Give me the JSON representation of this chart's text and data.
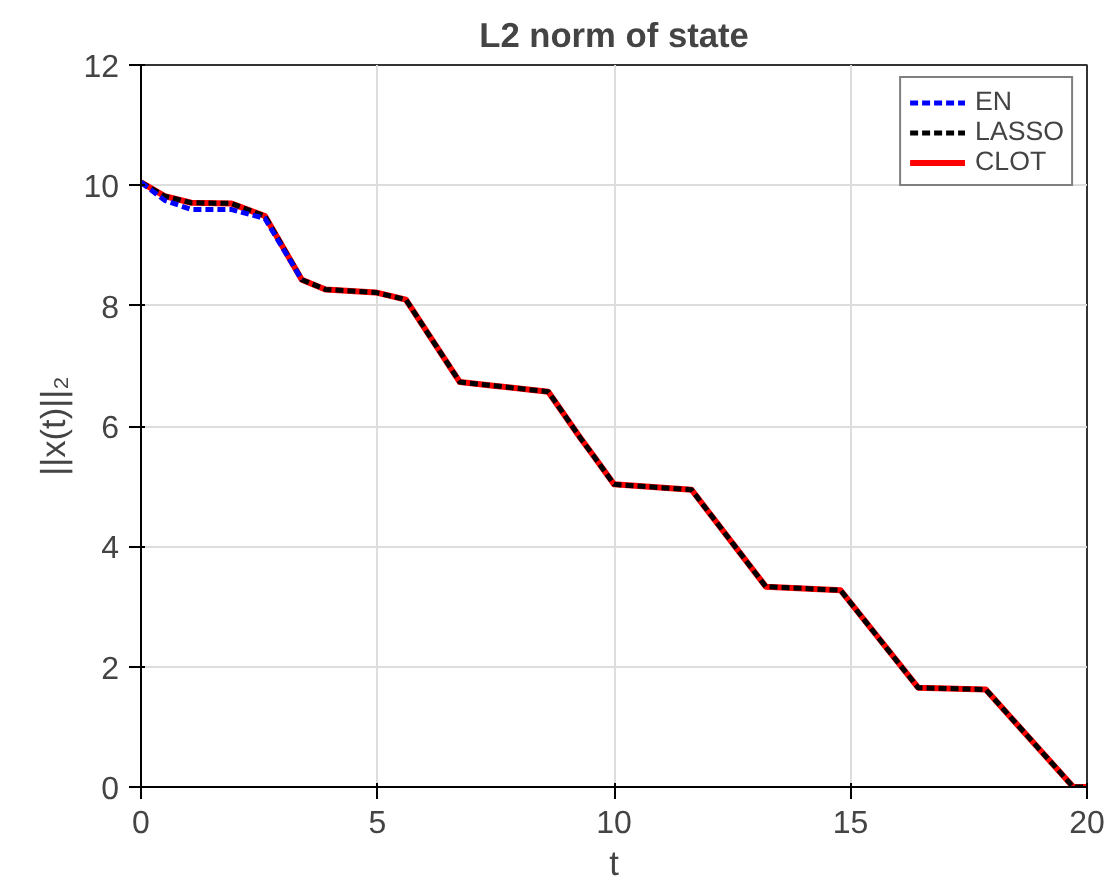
{
  "chart_data": {
    "type": "line",
    "title": "L2 norm of state",
    "xlabel": "t",
    "ylabel": "||x(t)||₂",
    "xlim": [
      0,
      20
    ],
    "ylim": [
      0,
      12
    ],
    "xticks": [
      0,
      5,
      10,
      15,
      20
    ],
    "yticks": [
      0,
      2,
      4,
      6,
      8,
      10,
      12
    ],
    "grid": true,
    "legend": "top right",
    "marker": "none",
    "series": [
      {
        "name": "EN",
        "color": "#0000ff",
        "line_style": "dashed",
        "x": [
          0,
          0.5,
          1.06,
          1.9,
          2.62,
          3.4
        ],
        "values": [
          10.05,
          9.75,
          9.6,
          9.6,
          9.45,
          8.43
        ]
      },
      {
        "name": "LASSO",
        "color": "#000000",
        "line_style": "dashed",
        "x": [
          0,
          0.5,
          1.06,
          1.9,
          2.62,
          3.4,
          3.9,
          4.96,
          5.6,
          6.74,
          7.45,
          8.61,
          9.29,
          9.57,
          10,
          11.64,
          13.21,
          14.79,
          16.43,
          17.86,
          19.71,
          20
        ],
        "values": [
          10.05,
          9.82,
          9.71,
          9.7,
          9.49,
          8.43,
          8.27,
          8.22,
          8.1,
          6.73,
          6.67,
          6.57,
          5.8,
          5.5,
          5.03,
          4.94,
          3.33,
          3.27,
          1.65,
          1.62,
          0,
          0
        ]
      },
      {
        "name": "CLOT",
        "color": "#ff0000",
        "line_style": "solid",
        "x": [
          0,
          0.5,
          1.06,
          1.9,
          2.62,
          3.4,
          3.9,
          4.96,
          5.6,
          6.74,
          7.45,
          8.61,
          9.29,
          9.57,
          10,
          11.64,
          13.21,
          14.79,
          16.43,
          17.86,
          19.71,
          20
        ],
        "values": [
          10.05,
          9.82,
          9.71,
          9.7,
          9.49,
          8.43,
          8.27,
          8.22,
          8.1,
          6.73,
          6.67,
          6.57,
          5.8,
          5.5,
          5.03,
          4.94,
          3.33,
          3.27,
          1.65,
          1.62,
          0,
          0
        ]
      }
    ]
  }
}
